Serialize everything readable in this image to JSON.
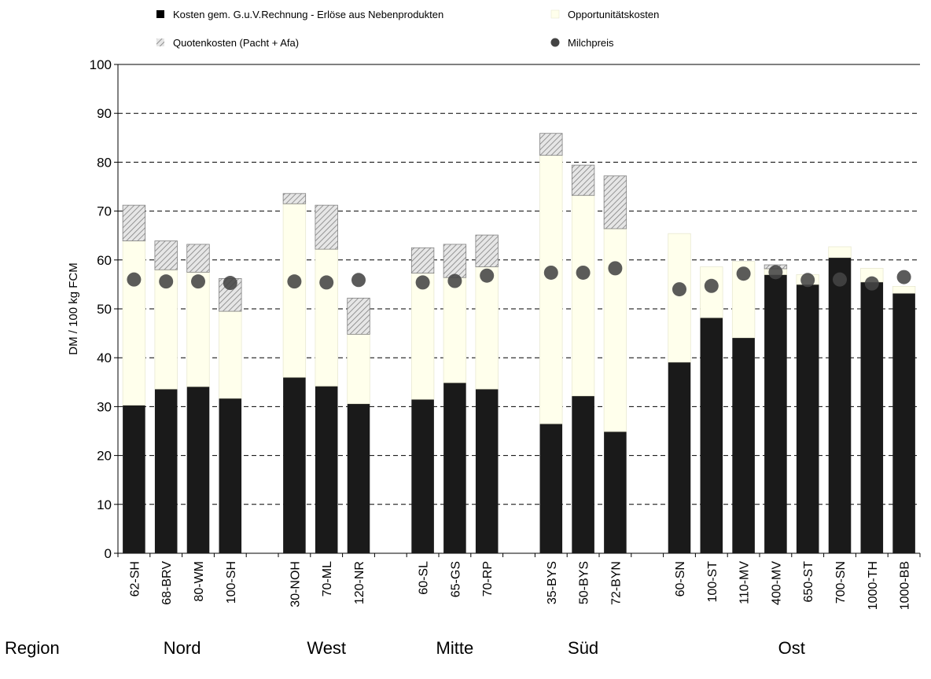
{
  "chart_data": {
    "type": "bar",
    "stacked": true,
    "title": "",
    "xlabel": "",
    "ylabel": "DM / 100 kg FCM",
    "ylim": [
      0,
      100
    ],
    "yticks": [
      0,
      10,
      20,
      30,
      40,
      50,
      60,
      70,
      80,
      90,
      100
    ],
    "grid": "horizontal-dashed",
    "legend_position": "top",
    "region_label": "Region",
    "groups": [
      {
        "name": "Nord",
        "categories": [
          "62-SH",
          "68-BRV",
          "80-WM",
          "100-SH"
        ]
      },
      {
        "name": "West",
        "categories": [
          "30-NOH",
          "70-ML",
          "120-NR"
        ]
      },
      {
        "name": "Mitte",
        "categories": [
          "60-SL",
          "65-GS",
          "70-RP"
        ]
      },
      {
        "name": "Süd",
        "categories": [
          "35-BYS",
          "50-BYS",
          "72-BYN"
        ]
      },
      {
        "name": "Ost",
        "categories": [
          "60-SN",
          "100-ST",
          "110-MV",
          "400-MV",
          "650-ST",
          "700-SN",
          "1000-TH",
          "1000-BB"
        ]
      }
    ],
    "series": [
      {
        "name": "Kosten gem. G.u.V.Rechnung - Erlöse aus Nebenprodukten",
        "kind": "bar",
        "color": "#1a1a1a",
        "values": [
          30.3,
          33.6,
          34.1,
          31.7,
          36.0,
          34.2,
          30.6,
          31.5,
          34.9,
          33.6,
          26.5,
          32.2,
          24.9,
          39.1,
          48.2,
          44.1,
          57.0,
          55.0,
          60.5,
          55.5,
          53.2
        ]
      },
      {
        "name": "Opportunitätskosten",
        "kind": "bar",
        "color": "#ffffec",
        "values": [
          33.6,
          24.4,
          23.4,
          17.8,
          35.5,
          28.0,
          14.2,
          25.8,
          21.5,
          25.0,
          54.9,
          41.0,
          41.5,
          26.3,
          10.4,
          15.6,
          1.2,
          2.0,
          2.2,
          2.8,
          1.4
        ]
      },
      {
        "name": "Quotenkosten (Pacht + Afa)",
        "kind": "bar",
        "color": "#cccccc",
        "pattern": "hatch",
        "values": [
          7.3,
          5.9,
          5.7,
          6.7,
          2.1,
          9.0,
          7.4,
          5.2,
          6.8,
          6.5,
          4.5,
          6.2,
          10.8,
          0,
          0,
          0,
          0.8,
          0,
          0,
          0,
          0
        ]
      },
      {
        "name": "Milchpreis",
        "kind": "point",
        "color": "#555555",
        "values": [
          56.0,
          55.6,
          55.6,
          55.3,
          55.6,
          55.4,
          55.9,
          55.4,
          55.7,
          56.8,
          57.4,
          57.4,
          58.3,
          54.0,
          54.7,
          57.2,
          57.5,
          55.9,
          56.0,
          55.2,
          56.5
        ]
      }
    ]
  }
}
